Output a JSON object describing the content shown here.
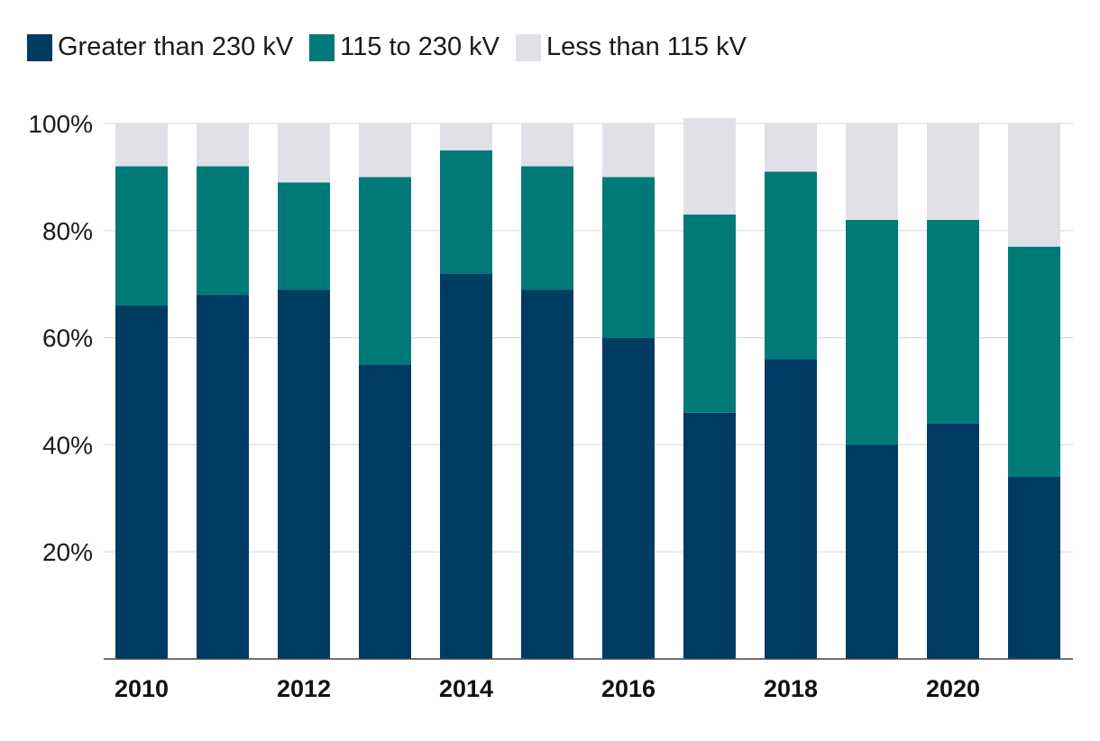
{
  "chart_data": {
    "type": "bar",
    "stacked": true,
    "categories": [
      "2010",
      "2011",
      "2012",
      "2013",
      "2014",
      "2015",
      "2016",
      "2017",
      "2018",
      "2019",
      "2020",
      "2021"
    ],
    "x_tick_labels": [
      "2010",
      "",
      "2012",
      "",
      "2014",
      "",
      "2016",
      "",
      "2018",
      "",
      "2020",
      ""
    ],
    "series": [
      {
        "name": "Greater than 230 kV",
        "color": "#003b62",
        "values": [
          66,
          68,
          69,
          55,
          72,
          69,
          60,
          46,
          56,
          40,
          44,
          34
        ]
      },
      {
        "name": "115 to 230 kV",
        "color": "#007a78",
        "values": [
          26,
          24,
          20,
          35,
          23,
          23,
          30,
          37,
          35,
          42,
          38,
          43
        ]
      },
      {
        "name": "Less than 115 kV",
        "color": "#e0e1e6",
        "values": [
          8,
          8,
          11,
          10,
          5,
          8,
          10,
          18,
          9,
          18,
          18,
          23
        ]
      }
    ],
    "y_ticks": [
      20,
      40,
      60,
      80,
      100
    ],
    "y_tick_labels": [
      "20%",
      "40%",
      "60%",
      "80%",
      "100%"
    ],
    "ylim": [
      0,
      100
    ],
    "title": "",
    "xlabel": "",
    "ylabel": "",
    "grid": true,
    "legend_position": "top-left"
  }
}
